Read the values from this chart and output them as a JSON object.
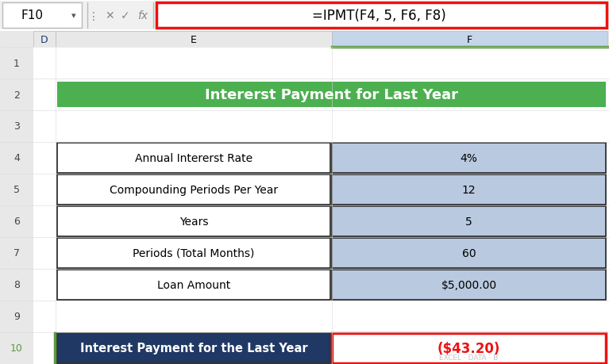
{
  "title_bar_text": "Intererst Payment for Last Year",
  "title_bar_color": "#4CAF50",
  "title_text_color": "#FFFFFF",
  "formula_bar_text": "=IPMT(F4, 5, F6, F8)",
  "formula_bar_bg": "#FFFFFF",
  "formula_bar_border": "#EE1111",
  "cell_ref": "F10",
  "col_D_label": "D",
  "col_E_label": "E",
  "col_F_label": "F",
  "row_numbers": [
    "1",
    "2",
    "3",
    "4",
    "5",
    "6",
    "7",
    "8",
    "9",
    "10"
  ],
  "table_rows": [
    {
      "label": "Annual Intererst Rate",
      "value": "4%"
    },
    {
      "label": "Compounding Periods Per Year",
      "value": "12"
    },
    {
      "label": "Years",
      "value": "5"
    },
    {
      "label": "Periods (Total Months)",
      "value": "60"
    },
    {
      "label": "Loan Amount",
      "value": "$5,000.00"
    }
  ],
  "table_label_bg": "#FFFFFF",
  "table_value_bg": "#B8C9E0",
  "table_border_color": "#222222",
  "result_label_text": "Interest Payment for the Last Year",
  "result_label_bg": "#1F3864",
  "result_label_text_color": "#FFFFFF",
  "result_value_text": "($43.20)",
  "result_value_color": "#EE1111",
  "result_value_bg": "#FFFFFF",
  "result_border_color": "#EE1111",
  "bg_color": "#FFFFFF",
  "sheet_bg": "#FFFFFF",
  "excel_header_bg": "#E8E8E8",
  "col_F_header_bg": "#C5D5EA",
  "col_F_header_border_bottom": "#5B9A3E",
  "row_num_selected_color": "#5B9A3E",
  "watermark_text": "EXCEL · DATA · B"
}
